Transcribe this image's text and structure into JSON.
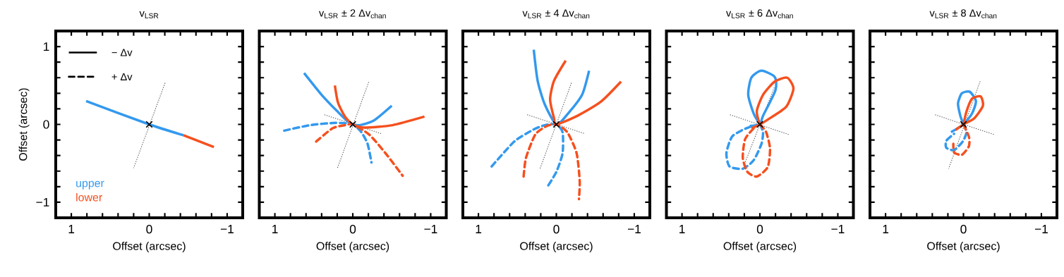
{
  "chart_data": [
    {
      "type": "line",
      "title": "v$_{LSR}$",
      "xlabel": "Offset (arcsec)",
      "ylabel": "Offset (arcsec)",
      "legend": "bottom left",
      "annotations": [
        "− Δv",
        "+ Δv"
      ],
      "xlim": [
        1.2,
        -1.2
      ],
      "ylim": [
        -1.2,
        1.2
      ],
      "xticks": [
        1,
        {
          "value": 0.8,
          "label": null
        },
        {
          "value": 0.6,
          "label": null
        },
        {
          "value": 0.4,
          "label": null
        },
        {
          "value": 0.2,
          "label": null
        },
        0,
        {
          "value": -0.2,
          "label": null
        },
        {
          "value": -0.4,
          "label": null
        },
        {
          "value": -0.6,
          "label": null
        },
        {
          "value": -0.8,
          "label": null
        },
        {
          "value": -1,
          "label": "−1"
        }
      ],
      "yticks": [
        {
          "value": -1,
          "label": "−1"
        },
        {
          "value": -0.8,
          "label": null
        },
        {
          "value": -0.6,
          "label": null
        },
        {
          "value": -0.4,
          "label": null
        },
        {
          "value": -0.2,
          "label": null
        },
        0,
        {
          "value": 0.2,
          "label": null
        },
        {
          "value": 0.4,
          "label": null
        },
        {
          "value": 0.6,
          "label": null
        },
        {
          "value": 0.8,
          "label": null
        },
        1
      ],
      "series": [
        {
          "color": "#555555",
          "line_style": "dotted",
          "x": [
            -0.21,
            0.2
          ],
          "values": [
            0.55,
            -0.56
          ]
        },
        {
          "name": "upper",
          "color": "#3399ee",
          "line_style": "solid",
          "x": [
            0.81,
            0,
            -0.44
          ],
          "values": [
            0.3,
            0,
            -0.14
          ]
        },
        {
          "name": "lower",
          "color": "#f5501e",
          "line_style": "solid",
          "x": [
            -0.44,
            -0.83
          ],
          "values": [
            -0.14,
            -0.29
          ]
        },
        {
          "type": "scatter",
          "marker": "cross",
          "color": "#000000",
          "x": [
            0
          ],
          "values": [
            0
          ]
        }
      ]
    },
    {
      "type": "line",
      "title": "v$_{LSR}$  ±  2 Δv$_{chan}$",
      "xlabel": "Offset (arcsec)",
      "tick_labels": "x",
      "xlim": [
        1.2,
        -1.2
      ],
      "ylim": [
        -1.2,
        1.2
      ],
      "xticks": [
        1,
        {
          "value": 0.8,
          "label": null
        },
        {
          "value": 0.6,
          "label": null
        },
        {
          "value": 0.4,
          "label": null
        },
        {
          "value": 0.2,
          "label": null
        },
        0,
        {
          "value": -0.2,
          "label": null
        },
        {
          "value": -0.4,
          "label": null
        },
        {
          "value": -0.6,
          "label": null
        },
        {
          "value": -0.8,
          "label": null
        },
        {
          "value": -1,
          "label": "−1"
        }
      ],
      "yticks": [
        {
          "value": -1,
          "label": null
        },
        {
          "value": -0.8,
          "label": null
        },
        {
          "value": -0.6,
          "label": null
        },
        {
          "value": -0.4,
          "label": null
        },
        {
          "value": -0.2,
          "label": null
        },
        {
          "value": 0,
          "label": null
        },
        {
          "value": 0.2,
          "label": null
        },
        {
          "value": 0.4,
          "label": null
        },
        {
          "value": 0.6,
          "label": null
        },
        {
          "value": 0.8,
          "label": null
        },
        {
          "value": 1,
          "label": null
        }
      ],
      "series": [
        {
          "color": "#555555",
          "line_style": "dotted",
          "x": [
            -0.21,
            0.2
          ],
          "values": [
            0.56,
            -0.57
          ]
        },
        {
          "color": "#555555",
          "line_style": "dotted",
          "x": [
            0.38,
            -0.37
          ],
          "values": [
            0.13,
            -0.12
          ]
        },
        {
          "color": "#3399ee",
          "line_style": "solid",
          "x": [
            0.625,
            0.4,
            0.19,
            0.04,
            -0.08,
            -0.27,
            -0.5
          ],
          "values": [
            0.66,
            0.38,
            0.16,
            0.02,
            -0.01,
            0.05,
            0.24
          ]
        },
        {
          "color": "#f5501e",
          "line_style": "solid",
          "x": [
            0.23,
            0.19,
            0.1,
            0,
            -0.15,
            -0.51,
            -0.92
          ],
          "values": [
            0.5,
            0.28,
            0.1,
            0,
            -0.04,
            -0.01,
            0.1
          ]
        },
        {
          "color": "#3399ee",
          "line_style": "dashed",
          "x": [
            0.88,
            0.55,
            0.22,
            0,
            -0.11,
            -0.19,
            -0.24
          ],
          "values": [
            -0.08,
            -0.01,
            0.02,
            0,
            -0.1,
            -0.25,
            -0.49
          ]
        },
        {
          "color": "#f5501e",
          "line_style": "dashed",
          "x": [
            0.47,
            0.26,
            0.1,
            0,
            -0.21,
            -0.42,
            -0.64
          ],
          "values": [
            -0.22,
            -0.05,
            -0.01,
            0,
            -0.13,
            -0.37,
            -0.66
          ]
        },
        {
          "type": "scatter",
          "marker": "cross",
          "color": "#000000",
          "x": [
            0
          ],
          "values": [
            0
          ]
        }
      ]
    },
    {
      "type": "line",
      "title": "v$_{LSR}$  ±  4 Δv$_{chan}$",
      "xlabel": "Offset (arcsec)",
      "tick_labels": "x",
      "xlim": [
        1.2,
        -1.2
      ],
      "ylim": [
        -1.2,
        1.2
      ],
      "xticks": [
        1,
        {
          "value": 0.8,
          "label": null
        },
        {
          "value": 0.6,
          "label": null
        },
        {
          "value": 0.4,
          "label": null
        },
        {
          "value": 0.2,
          "label": null
        },
        0,
        {
          "value": -0.2,
          "label": null
        },
        {
          "value": -0.4,
          "label": null
        },
        {
          "value": -0.6,
          "label": null
        },
        {
          "value": -0.8,
          "label": null
        },
        {
          "value": -1,
          "label": "−1"
        }
      ],
      "yticks": [
        {
          "value": -1,
          "label": null
        },
        {
          "value": -0.8,
          "label": null
        },
        {
          "value": -0.6,
          "label": null
        },
        {
          "value": -0.4,
          "label": null
        },
        {
          "value": -0.2,
          "label": null
        },
        {
          "value": 0,
          "label": null
        },
        {
          "value": 0.2,
          "label": null
        },
        {
          "value": 0.4,
          "label": null
        },
        {
          "value": 0.6,
          "label": null
        },
        {
          "value": 0.8,
          "label": null
        },
        {
          "value": 1,
          "label": null
        }
      ],
      "series": [
        {
          "color": "#555555",
          "line_style": "dotted",
          "x": [
            -0.2,
            0.21
          ],
          "values": [
            0.55,
            -0.57
          ]
        },
        {
          "color": "#555555",
          "line_style": "dotted",
          "x": [
            0.39,
            -0.37
          ],
          "values": [
            0.13,
            -0.12
          ]
        },
        {
          "color": "#3399ee",
          "line_style": "solid",
          "x": [
            0.29,
            0.24,
            0.15,
            0,
            -0.15,
            -0.33,
            -0.42
          ],
          "values": [
            0.96,
            0.56,
            0.26,
            0,
            0.14,
            0.38,
            0.69
          ]
        },
        {
          "color": "#f5501e",
          "line_style": "solid",
          "x": [
            -0.12,
            0.03,
            0.08,
            0.03,
            0,
            -0.27,
            -0.57,
            -0.83
          ],
          "values": [
            0.82,
            0.56,
            0.32,
            0.08,
            0,
            0.11,
            0.29,
            0.55
          ]
        },
        {
          "color": "#3399ee",
          "line_style": "dashed",
          "x": [
            0.83,
            0.54,
            0.3,
            0.15,
            0,
            -0.08,
            -0.08,
            0,
            0.12
          ],
          "values": [
            -0.54,
            -0.22,
            -0.07,
            -0.01,
            0,
            -0.1,
            -0.37,
            -0.61,
            -0.81
          ]
        },
        {
          "color": "#f5501e",
          "line_style": "dashed",
          "x": [
            0.42,
            0.39,
            0.27,
            0.12,
            0,
            -0.14,
            -0.26,
            -0.3,
            -0.29
          ],
          "values": [
            -0.67,
            -0.43,
            -0.13,
            -0.02,
            0,
            -0.1,
            -0.37,
            -0.73,
            -0.96
          ]
        },
        {
          "type": "scatter",
          "marker": "cross",
          "color": "#000000",
          "x": [
            0
          ],
          "values": [
            0
          ]
        }
      ]
    },
    {
      "type": "line",
      "title": "v$_{LSR}$  ±  6 Δv$_{chan}$",
      "xlabel": "Offset (arcsec)",
      "tick_labels": "x",
      "xlim": [
        1.2,
        -1.2
      ],
      "ylim": [
        -1.2,
        1.2
      ],
      "xticks": [
        1,
        {
          "value": 0.8,
          "label": null
        },
        {
          "value": 0.6,
          "label": null
        },
        {
          "value": 0.4,
          "label": null
        },
        {
          "value": 0.2,
          "label": null
        },
        0,
        {
          "value": -0.2,
          "label": null
        },
        {
          "value": -0.4,
          "label": null
        },
        {
          "value": -0.6,
          "label": null
        },
        {
          "value": -0.8,
          "label": null
        },
        {
          "value": -1,
          "label": "−1"
        }
      ],
      "yticks": [
        {
          "value": -1,
          "label": null
        },
        {
          "value": -0.8,
          "label": null
        },
        {
          "value": -0.6,
          "label": null
        },
        {
          "value": -0.4,
          "label": null
        },
        {
          "value": -0.2,
          "label": null
        },
        {
          "value": 0,
          "label": null
        },
        {
          "value": 0.2,
          "label": null
        },
        {
          "value": 0.4,
          "label": null
        },
        {
          "value": 0.6,
          "label": null
        },
        {
          "value": 0.8,
          "label": null
        },
        {
          "value": 1,
          "label": null
        }
      ],
      "series": [
        {
          "color": "#555555",
          "line_style": "dotted",
          "x": [
            -0.19,
            0.19
          ],
          "values": [
            0.49,
            -0.49
          ]
        },
        {
          "color": "#555555",
          "line_style": "dotted",
          "x": [
            0.4,
            -0.37
          ],
          "values": [
            0.13,
            -0.13
          ]
        },
        {
          "color": "#3399ee",
          "line_style": "solid",
          "x": [
            0.13,
            0,
            -0.04,
            -0.2,
            -0.19,
            -0.02,
            0.11,
            0.15,
            0.08,
            0
          ],
          "values": [
            -0.02,
            0,
            0.11,
            0.44,
            0.61,
            0.69,
            0.6,
            0.38,
            0.14,
            0
          ]
        },
        {
          "color": "#f5501e",
          "line_style": "solid",
          "x": [
            0.11,
            0,
            -0.13,
            -0.34,
            -0.43,
            -0.35,
            -0.19,
            -0.04,
            0.04,
            0
          ],
          "values": [
            -0.05,
            0,
            0.08,
            0.23,
            0.46,
            0.6,
            0.55,
            0.38,
            0.17,
            0
          ]
        },
        {
          "color": "#3399ee",
          "line_style": "dashed",
          "x": [
            0,
            -0.04,
            -0.02,
            0.08,
            0.22,
            0.39,
            0.43,
            0.36,
            0.22,
            0.1
          ],
          "values": [
            0,
            -0.1,
            -0.25,
            -0.46,
            -0.57,
            -0.54,
            -0.37,
            -0.16,
            -0.07,
            -0.02
          ]
        },
        {
          "color": "#f5501e",
          "line_style": "dashed",
          "x": [
            0,
            -0.08,
            -0.13,
            -0.1,
            0.04,
            0.16,
            0.22,
            0.19,
            0.08
          ],
          "values": [
            0,
            -0.1,
            -0.31,
            -0.55,
            -0.67,
            -0.61,
            -0.43,
            -0.19,
            -0.05
          ]
        },
        {
          "type": "scatter",
          "marker": "cross",
          "color": "#000000",
          "x": [
            0
          ],
          "values": [
            0
          ]
        }
      ]
    },
    {
      "type": "line",
      "title": "v$_{LSR}$  ±  8 Δv$_{chan}$",
      "xlabel": "Offset (arcsec)",
      "tick_labels": "x",
      "xlim": [
        1.2,
        -1.2
      ],
      "ylim": [
        -1.2,
        1.2
      ],
      "xticks": [
        1,
        {
          "value": 0.8,
          "label": null
        },
        {
          "value": 0.6,
          "label": null
        },
        {
          "value": 0.4,
          "label": null
        },
        {
          "value": 0.2,
          "label": null
        },
        0,
        {
          "value": -0.2,
          "label": null
        },
        {
          "value": -0.4,
          "label": null
        },
        {
          "value": -0.6,
          "label": null
        },
        {
          "value": -0.8,
          "label": null
        },
        {
          "value": -1,
          "label": "−1"
        }
      ],
      "yticks": [
        {
          "value": -1,
          "label": null
        },
        {
          "value": -0.8,
          "label": null
        },
        {
          "value": -0.6,
          "label": null
        },
        {
          "value": -0.4,
          "label": null
        },
        {
          "value": -0.2,
          "label": null
        },
        {
          "value": 0,
          "label": null
        },
        {
          "value": 0.2,
          "label": null
        },
        {
          "value": 0.4,
          "label": null
        },
        {
          "value": 0.6,
          "label": null
        },
        {
          "value": 0.8,
          "label": null
        },
        {
          "value": 1,
          "label": null
        }
      ],
      "series": [
        {
          "color": "#555555",
          "line_style": "dotted",
          "x": [
            -0.22,
            0.19
          ],
          "values": [
            0.57,
            -0.57
          ]
        },
        {
          "color": "#555555",
          "line_style": "dotted",
          "x": [
            0.38,
            -0.39
          ],
          "values": [
            0.13,
            -0.13
          ]
        },
        {
          "color": "#3399ee",
          "line_style": "solid",
          "x": [
            0.16,
            0,
            -0.11,
            -0.16,
            -0.08,
            0.02,
            0.07,
            0.04,
            0
          ],
          "values": [
            -0.1,
            0,
            0.14,
            0.3,
            0.42,
            0.4,
            0.27,
            0.11,
            0
          ]
        },
        {
          "color": "#f5501e",
          "line_style": "solid",
          "x": [
            0.1,
            0,
            -0.14,
            -0.25,
            -0.22,
            -0.11,
            -0.04,
            0
          ],
          "values": [
            -0.07,
            0,
            0.08,
            0.24,
            0.36,
            0.33,
            0.17,
            0
          ]
        },
        {
          "color": "#3399ee",
          "line_style": "dashed",
          "x": [
            0,
            -0.04,
            0.01,
            0.12,
            0.22,
            0.22,
            0.12
          ],
          "values": [
            0,
            -0.1,
            -0.22,
            -0.33,
            -0.3,
            -0.21,
            -0.12
          ]
        },
        {
          "color": "#f5501e",
          "line_style": "dashed",
          "x": [
            0,
            -0.07,
            -0.07,
            0.02,
            0.12,
            0.13
          ],
          "values": [
            0,
            -0.16,
            -0.28,
            -0.39,
            -0.36,
            -0.25
          ]
        },
        {
          "type": "scatter",
          "marker": "cross",
          "color": "#000000",
          "x": [
            0
          ],
          "values": [
            0
          ]
        }
      ]
    }
  ]
}
